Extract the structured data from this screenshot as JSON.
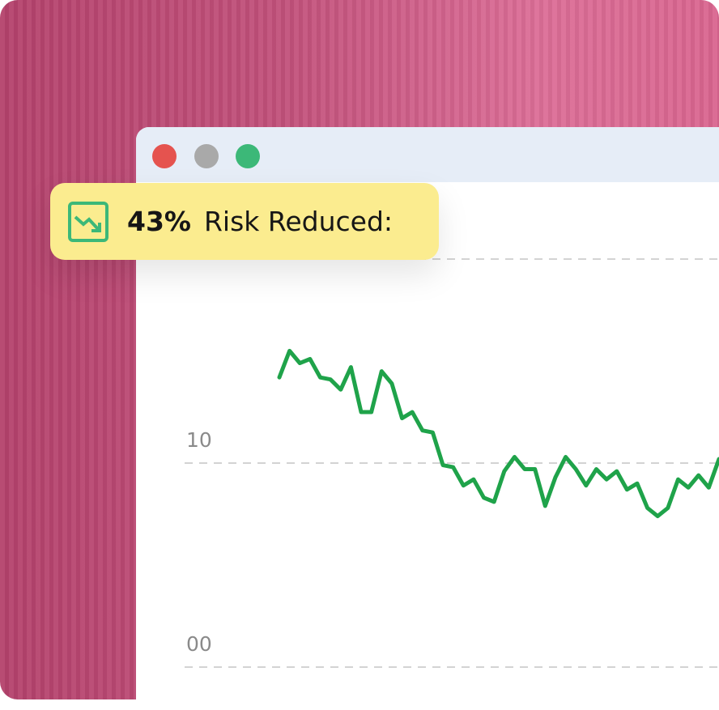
{
  "badge": {
    "value": "43%",
    "label": "Risk Reduced:"
  },
  "chart_data": {
    "type": "line",
    "color": "#1fa34a",
    "grid": true,
    "ylim": [
      0,
      20
    ],
    "yticks": [
      {
        "value": 0,
        "label": "00"
      },
      10
    ],
    "values": [
      14.2,
      15.5,
      14.9,
      15.1,
      14.2,
      14.1,
      13.6,
      14.7,
      12.5,
      12.5,
      14.5,
      13.9,
      12.2,
      12.5,
      11.6,
      11.5,
      9.9,
      9.8,
      8.9,
      9.2,
      8.3,
      8.1,
      9.6,
      10.3,
      9.7,
      9.7,
      7.9,
      9.3,
      10.3,
      9.7,
      8.9,
      9.7,
      9.2,
      9.6,
      8.7,
      9.0,
      7.8,
      7.4,
      7.8,
      9.2,
      8.8,
      9.4,
      8.8,
      10.2
    ]
  }
}
